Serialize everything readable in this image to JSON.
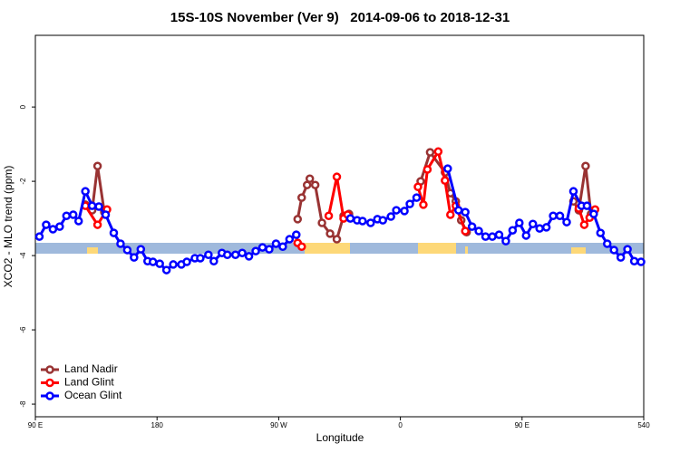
{
  "chart_data": {
    "type": "line",
    "title": "15S-10S November (Ver 9)   2014-09-06 to 2018-12-31",
    "x_label": "Longitude",
    "y_label": "XCO2 - MLO trend (ppm)",
    "xlim": [
      90,
      540
    ],
    "xticks": [
      {
        "value": 90,
        "label": "90 E"
      },
      180,
      {
        "value": 270,
        "label": "90 W"
      },
      {
        "value": 360,
        "label": "0"
      },
      {
        "value": 450,
        "label": "90 E"
      },
      540
    ],
    "ylim": [
      -8.34,
      1.93
    ],
    "yticks": [
      0,
      -2,
      -4,
      -6,
      -8
    ],
    "legend": "lower left",
    "series": [
      {
        "name": "Land Nadir",
        "color": "#993333",
        "x": [
          127,
          132,
          136,
          141,
          null,
          284,
          287,
          291,
          293,
          297,
          302,
          308,
          313,
          318,
          322,
          null,
          375,
          382,
          393,
          397,
          401,
          405,
          409,
          null,
          488,
          492,
          497,
          501
        ],
        "values": [
          -2.63,
          -2.78,
          -1.59,
          -2.83,
          null,
          -3.02,
          -2.44,
          -2.1,
          -1.93,
          -2.1,
          -3.12,
          -3.41,
          -3.56,
          -2.93,
          -2.88,
          null,
          -2.0,
          -1.22,
          -1.76,
          -2.32,
          -2.54,
          -3.05,
          -3.37,
          null,
          -2.54,
          -2.78,
          -1.59,
          -2.88
        ]
      },
      {
        "name": "Land Glint",
        "color": "#ff0000",
        "x": [
          127,
          136,
          143,
          null,
          284,
          287,
          null,
          307,
          313,
          318,
          321,
          null,
          373,
          377,
          380,
          388,
          393,
          397,
          401,
          408,
          null,
          492,
          496,
          500,
          504
        ],
        "values": [
          -2.66,
          -3.17,
          -2.76,
          null,
          -3.66,
          -3.76,
          null,
          -2.93,
          -1.88,
          -3.0,
          -2.9,
          null,
          -2.15,
          -2.63,
          -1.68,
          -1.2,
          -1.98,
          -2.9,
          -2.66,
          -3.34,
          null,
          -2.73,
          -3.17,
          -2.98,
          -2.76
        ]
      },
      {
        "name": "Ocean Glint",
        "color": "#0000ff",
        "x": [
          93,
          98,
          103,
          108,
          113,
          118,
          122,
          127,
          132,
          137,
          142,
          148,
          153,
          158,
          163,
          168,
          173,
          177,
          182,
          187,
          192,
          198,
          202,
          208,
          212,
          218,
          222,
          228,
          232,
          238,
          243,
          248,
          253,
          258,
          263,
          268,
          273,
          278,
          283,
          null,
          323,
          328,
          332,
          338,
          343,
          347,
          353,
          357,
          363,
          367,
          372,
          null,
          395,
          403,
          408,
          413,
          418,
          423,
          428,
          433,
          438,
          443,
          448,
          453,
          458,
          463,
          468,
          473,
          478,
          483,
          488,
          494,
          498,
          503,
          508,
          513,
          518,
          523,
          528,
          533,
          538
        ],
        "values": [
          -3.49,
          -3.17,
          -3.29,
          -3.22,
          -2.93,
          -2.9,
          -3.07,
          -2.27,
          -2.66,
          -2.68,
          -2.9,
          -3.39,
          -3.68,
          -3.85,
          -4.05,
          -3.83,
          -4.15,
          -4.17,
          -4.22,
          -4.39,
          -4.24,
          -4.24,
          -4.17,
          -4.07,
          -4.07,
          -3.98,
          -4.15,
          -3.93,
          -3.98,
          -3.98,
          -3.93,
          -4.02,
          -3.88,
          -3.78,
          -3.83,
          -3.68,
          -3.76,
          -3.56,
          -3.44,
          null,
          -3.0,
          -3.05,
          -3.07,
          -3.12,
          -3.02,
          -3.05,
          -2.95,
          -2.78,
          -2.8,
          -2.61,
          -2.44,
          null,
          -1.66,
          -2.78,
          -2.83,
          -3.22,
          -3.34,
          -3.49,
          -3.49,
          -3.44,
          -3.61,
          -3.32,
          -3.12,
          -3.46,
          -3.15,
          -3.27,
          -3.24,
          -2.93,
          -2.93,
          -3.1,
          -2.27,
          -2.66,
          -2.66,
          -2.88,
          -3.39,
          -3.68,
          -3.85,
          -4.05,
          -3.83,
          -4.15,
          -4.17
        ]
      }
    ]
  }
}
